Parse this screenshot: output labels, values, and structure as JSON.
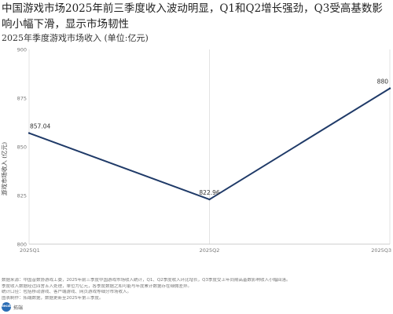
{
  "header": {
    "title": "中国游戏市场2025年前三季度收入波动明显，Q1和Q2增长强劲，Q3受高基数影响小幅下滑，显示市场韧性",
    "subtitle": "2025年季度游戏市场收入 (单位:亿元)"
  },
  "chart_data": {
    "type": "line",
    "categories": [
      "2025Q1",
      "2025Q2",
      "2025Q3"
    ],
    "category_labels": [
      "2025Q1",
      "2025Q2",
      "2025Q3"
    ],
    "values": [
      857.04,
      822.96,
      880
    ],
    "data_labels": [
      "857.04",
      "822.96",
      "880"
    ],
    "ylabel": "游戏市场收入 (亿元)",
    "ylim": [
      800,
      900
    ],
    "y_ticks": [
      800,
      825,
      850,
      875,
      900
    ],
    "grid": "vertical",
    "line_color": "#1f3a68"
  },
  "footer": {
    "source_lines": [
      "数据来源：中国音数协游戏工委，2025年前三季度中国游戏市场收入统计，Q1、Q2季度收入环比增长，Q3季度受上年同期高基数影响收入小幅回落。",
      "季度收入数据经过四舍五入处理，单位为亿元，各季度数据之和可能与年度累计数据存在细微差异。",
      "统计口径：包括移动游戏、客户端游戏、网页游戏等细分市场收入。",
      "图表制作：拓端数据，数据更新至2025年第三季度。"
    ],
    "logo_badge": "tecdat",
    "logo_text": "拓端"
  }
}
